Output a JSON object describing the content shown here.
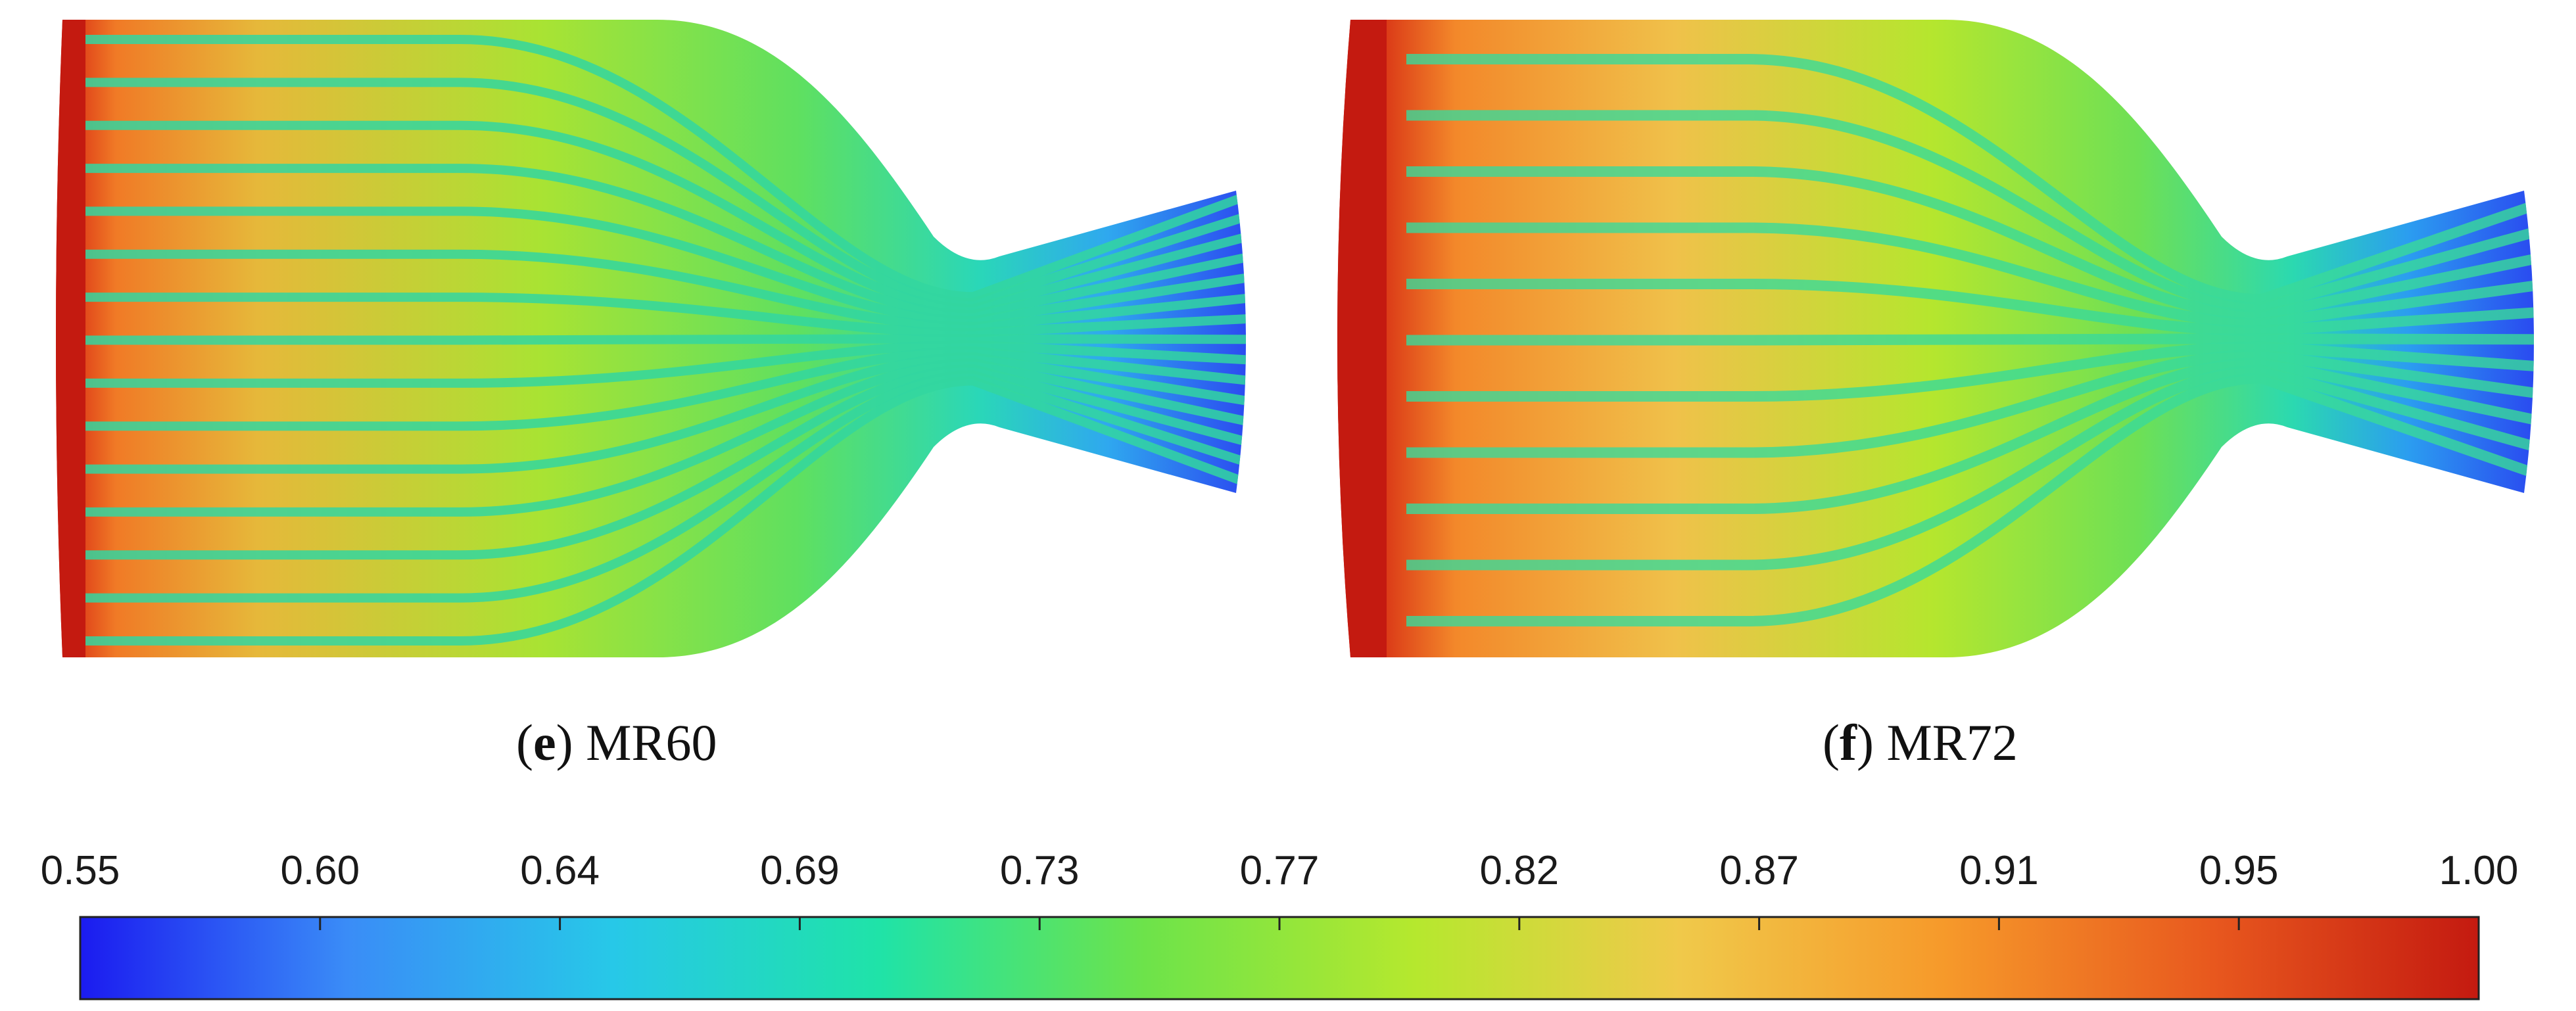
{
  "panels": [
    {
      "letter": "e",
      "label": "MR60"
    },
    {
      "letter": "f",
      "label": "MR72"
    }
  ],
  "colorbar": {
    "min": 0.55,
    "max": 1.0,
    "tick_labels": [
      "0.55",
      "0.60",
      "0.64",
      "0.69",
      "0.73",
      "0.77",
      "0.82",
      "0.87",
      "0.91",
      "0.95",
      "1.00"
    ],
    "colormap": [
      "#1b1bf0",
      "#3a8cf7",
      "#27c8e8",
      "#1fe3a8",
      "#6de34a",
      "#b5e82e",
      "#f0c94a",
      "#f6992a",
      "#e8581e",
      "#c41a10"
    ]
  }
}
